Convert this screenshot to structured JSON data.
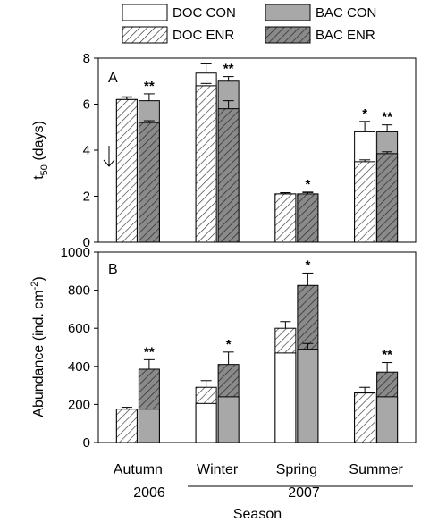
{
  "legend": {
    "entries": [
      {
        "key": "doc_con",
        "label": "DOC CON"
      },
      {
        "key": "bac_con",
        "label": "BAC CON"
      },
      {
        "key": "doc_enr",
        "label": "DOC ENR"
      },
      {
        "key": "bac_enr",
        "label": "BAC ENR"
      }
    ]
  },
  "x_axis": {
    "categories": [
      "Autumn",
      "Winter",
      "Spring",
      "Summer"
    ],
    "years": [
      {
        "label": "2006",
        "categories": [
          "Autumn"
        ]
      },
      {
        "label": "2007",
        "categories": [
          "Winter",
          "Spring",
          "Summer"
        ]
      }
    ],
    "label": "Season"
  },
  "colors": {
    "con_doc_fill": "#ffffff",
    "con_bac_fill": "#a8a8a8",
    "hatch_line": "#333333",
    "enr_bac_bg": "#8a8a8a",
    "axis": "#000000"
  },
  "chart_data": [
    {
      "panel": "A",
      "type": "bar",
      "ylabel": "t50 (days)",
      "ylabel_main": "t",
      "ylabel_sub": "50",
      "ylabel_rest": " (days)",
      "ylim": [
        0,
        8
      ],
      "yticks": [
        0,
        2,
        4,
        6,
        8
      ],
      "annotation_arrow": "down-arrow",
      "categories": [
        "Autumn",
        "Winter",
        "Spring",
        "Summer"
      ],
      "series": [
        {
          "name": "DOC CON",
          "values": [
            6.2,
            7.35,
            2.1,
            4.8
          ],
          "errors": [
            0.12,
            0.4,
            0.05,
            0.45
          ]
        },
        {
          "name": "DOC ENR",
          "values": [
            6.2,
            6.8,
            2.1,
            3.5
          ],
          "errors": [
            0.1,
            0.1,
            0.05,
            0.08
          ]
        },
        {
          "name": "BAC CON",
          "values": [
            6.15,
            7.0,
            2.1,
            4.8
          ],
          "errors": [
            0.3,
            0.2,
            0.08,
            0.3
          ]
        },
        {
          "name": "BAC ENR",
          "values": [
            5.2,
            5.8,
            2.1,
            3.85
          ],
          "errors": [
            0.08,
            0.35,
            0.06,
            0.08
          ]
        }
      ],
      "significance": [
        "**",
        "**",
        "*",
        "**"
      ],
      "significance_doc": [
        "",
        "",
        "",
        "*"
      ]
    },
    {
      "panel": "B",
      "type": "bar",
      "ylabel": "Abundance (ind. cm-2)",
      "ylabel_main": "Abundance (ind. cm",
      "ylabel_sup": "-2",
      "ylabel_rest": ")",
      "ylim": [
        0,
        1000
      ],
      "yticks": [
        0,
        200,
        400,
        600,
        800,
        1000
      ],
      "categories": [
        "Autumn",
        "Winter",
        "Spring",
        "Summer"
      ],
      "series": [
        {
          "name": "DOC CON",
          "values": [
            175,
            205,
            470,
            260
          ],
          "errors": [
            10,
            0,
            0,
            30
          ]
        },
        {
          "name": "DOC ENR",
          "values": [
            175,
            290,
            600,
            260
          ],
          "errors": [
            0,
            35,
            35,
            0
          ]
        },
        {
          "name": "BAC CON",
          "values": [
            175,
            240,
            490,
            240
          ],
          "errors": [
            0,
            0,
            30,
            0
          ]
        },
        {
          "name": "BAC ENR",
          "values": [
            385,
            410,
            825,
            370
          ],
          "errors": [
            50,
            65,
            65,
            50
          ]
        }
      ],
      "significance": [
        "**",
        "*",
        "*",
        "**"
      ]
    }
  ]
}
